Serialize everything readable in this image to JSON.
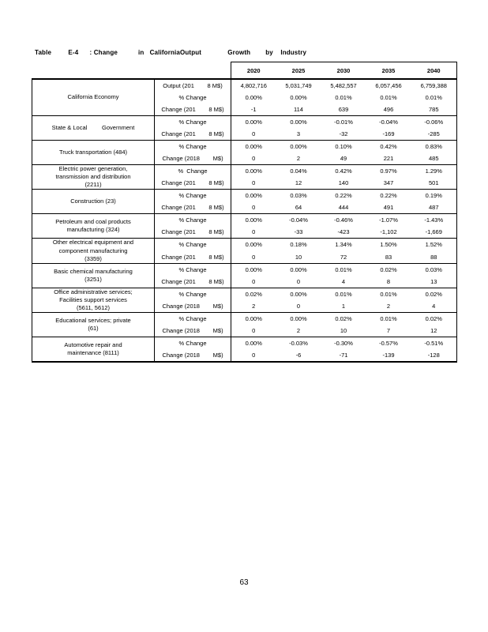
{
  "page": {
    "number": "63"
  },
  "table": {
    "title": "Table         E-4      : Change           in   CaliforniaOutput              Growth        by    Industry",
    "years": [
      "2020",
      "2025",
      "2030",
      "2035",
      "2040"
    ],
    "groups": [
      {
        "label": "California Economy",
        "rows": [
          {
            "metric": "Output (201        8 M$)",
            "values": [
              "4,802,716",
              "5,031,749",
              "5,482,557",
              "6,057,456",
              "6,759,388"
            ]
          },
          {
            "metric": "% Change",
            "values": [
              "0.00%",
              "0.00%",
              "0.01%",
              "0.01%",
              "0.01%"
            ]
          },
          {
            "metric": "Change (201        8 M$)",
            "values": [
              "-1",
              "114",
              "639",
              "496",
              "785"
            ]
          }
        ]
      },
      {
        "label": "State & Local         Government",
        "rows": [
          {
            "metric": "% Change",
            "values": [
              "0.00%",
              "0.00%",
              "-0.01%",
              "-0.04%",
              "-0.06%"
            ]
          },
          {
            "metric": "Change (201        8 M$)",
            "values": [
              "0",
              "3",
              "-32",
              "-169",
              "-285"
            ]
          }
        ]
      },
      {
        "label": "Truck transportation (484)",
        "rows": [
          {
            "metric": "% Change",
            "values": [
              "0.00%",
              "0.00%",
              "0.10%",
              "0.42%",
              "0.83%"
            ]
          },
          {
            "metric": "Change (2018        M$)",
            "values": [
              "0",
              "2",
              "49",
              "221",
              "485"
            ]
          }
        ]
      },
      {
        "label": "Electric power generation,\ntransmission and distribution\n(2211)",
        "rows": [
          {
            "metric": "%  Change",
            "values": [
              "0.00%",
              "0.04%",
              "0.42%",
              "0.97%",
              "1.29%"
            ]
          },
          {
            "metric": "Change (201        8 M$)",
            "values": [
              "0",
              "12",
              "140",
              "347",
              "501"
            ]
          }
        ]
      },
      {
        "label": "Construction (23)",
        "rows": [
          {
            "metric": "% Change",
            "values": [
              "0.00%",
              "0.03%",
              "0.22%",
              "0.22%",
              "0.19%"
            ]
          },
          {
            "metric": "Change (201        8 M$)",
            "values": [
              "0",
              "64",
              "444",
              "491",
              "487"
            ]
          }
        ]
      },
      {
        "label": "Petroleum and coal products\nmanufacturing (324)",
        "rows": [
          {
            "metric": "% Change",
            "values": [
              "0.00%",
              "-0.04%",
              "-0.46%",
              "-1.07%",
              "-1.43%"
            ]
          },
          {
            "metric": "Change (201        8 M$)",
            "values": [
              "0",
              "-33",
              "-423",
              "-1,102",
              "-1,669"
            ]
          }
        ]
      },
      {
        "label": "Other electrical equipment and\ncomponent manufacturing\n(3359)",
        "rows": [
          {
            "metric": "% Change",
            "values": [
              "0.00%",
              "0.18%",
              "1.34%",
              "1.50%",
              "1.52%"
            ]
          },
          {
            "metric": "Change (201        8 M$)",
            "values": [
              "0",
              "10",
              "72",
              "83",
              "88"
            ]
          }
        ]
      },
      {
        "label": "Basic chemical manufacturing\n(3251)",
        "rows": [
          {
            "metric": "% Change",
            "values": [
              "0.00%",
              "0.00%",
              "0.01%",
              "0.02%",
              "0.03%"
            ]
          },
          {
            "metric": "Change (201        8 M$)",
            "values": [
              "0",
              "0",
              "4",
              "8",
              "13"
            ]
          }
        ]
      },
      {
        "label": "Office administrative services;\nFacilities support services\n(5611, 5612)",
        "rows": [
          {
            "metric": "% Change",
            "values": [
              "0.02%",
              "0.00%",
              "0.01%",
              "0.01%",
              "0.02%"
            ]
          },
          {
            "metric": "Change (2018        M$)",
            "values": [
              "2",
              "0",
              "1",
              "2",
              "4"
            ]
          }
        ]
      },
      {
        "label": "Educational services; private\n(61)",
        "rows": [
          {
            "metric": "% Change",
            "values": [
              "0.00%",
              "0.00%",
              "0.02%",
              "0.01%",
              "0.02%"
            ]
          },
          {
            "metric": "Change (2018        M$)",
            "values": [
              "0",
              "2",
              "10",
              "7",
              "12"
            ]
          }
        ]
      },
      {
        "label": "Automotive repair and\nmaintenance (8111)",
        "rows": [
          {
            "metric": "% Change",
            "values": [
              "0.00%",
              "-0.03%",
              "-0.30%",
              "-0.57%",
              "-0.51%"
            ]
          },
          {
            "metric": "Change (2018        M$)",
            "values": [
              "0",
              "-6",
              "-71",
              "-139",
              "-128"
            ]
          }
        ]
      }
    ]
  }
}
